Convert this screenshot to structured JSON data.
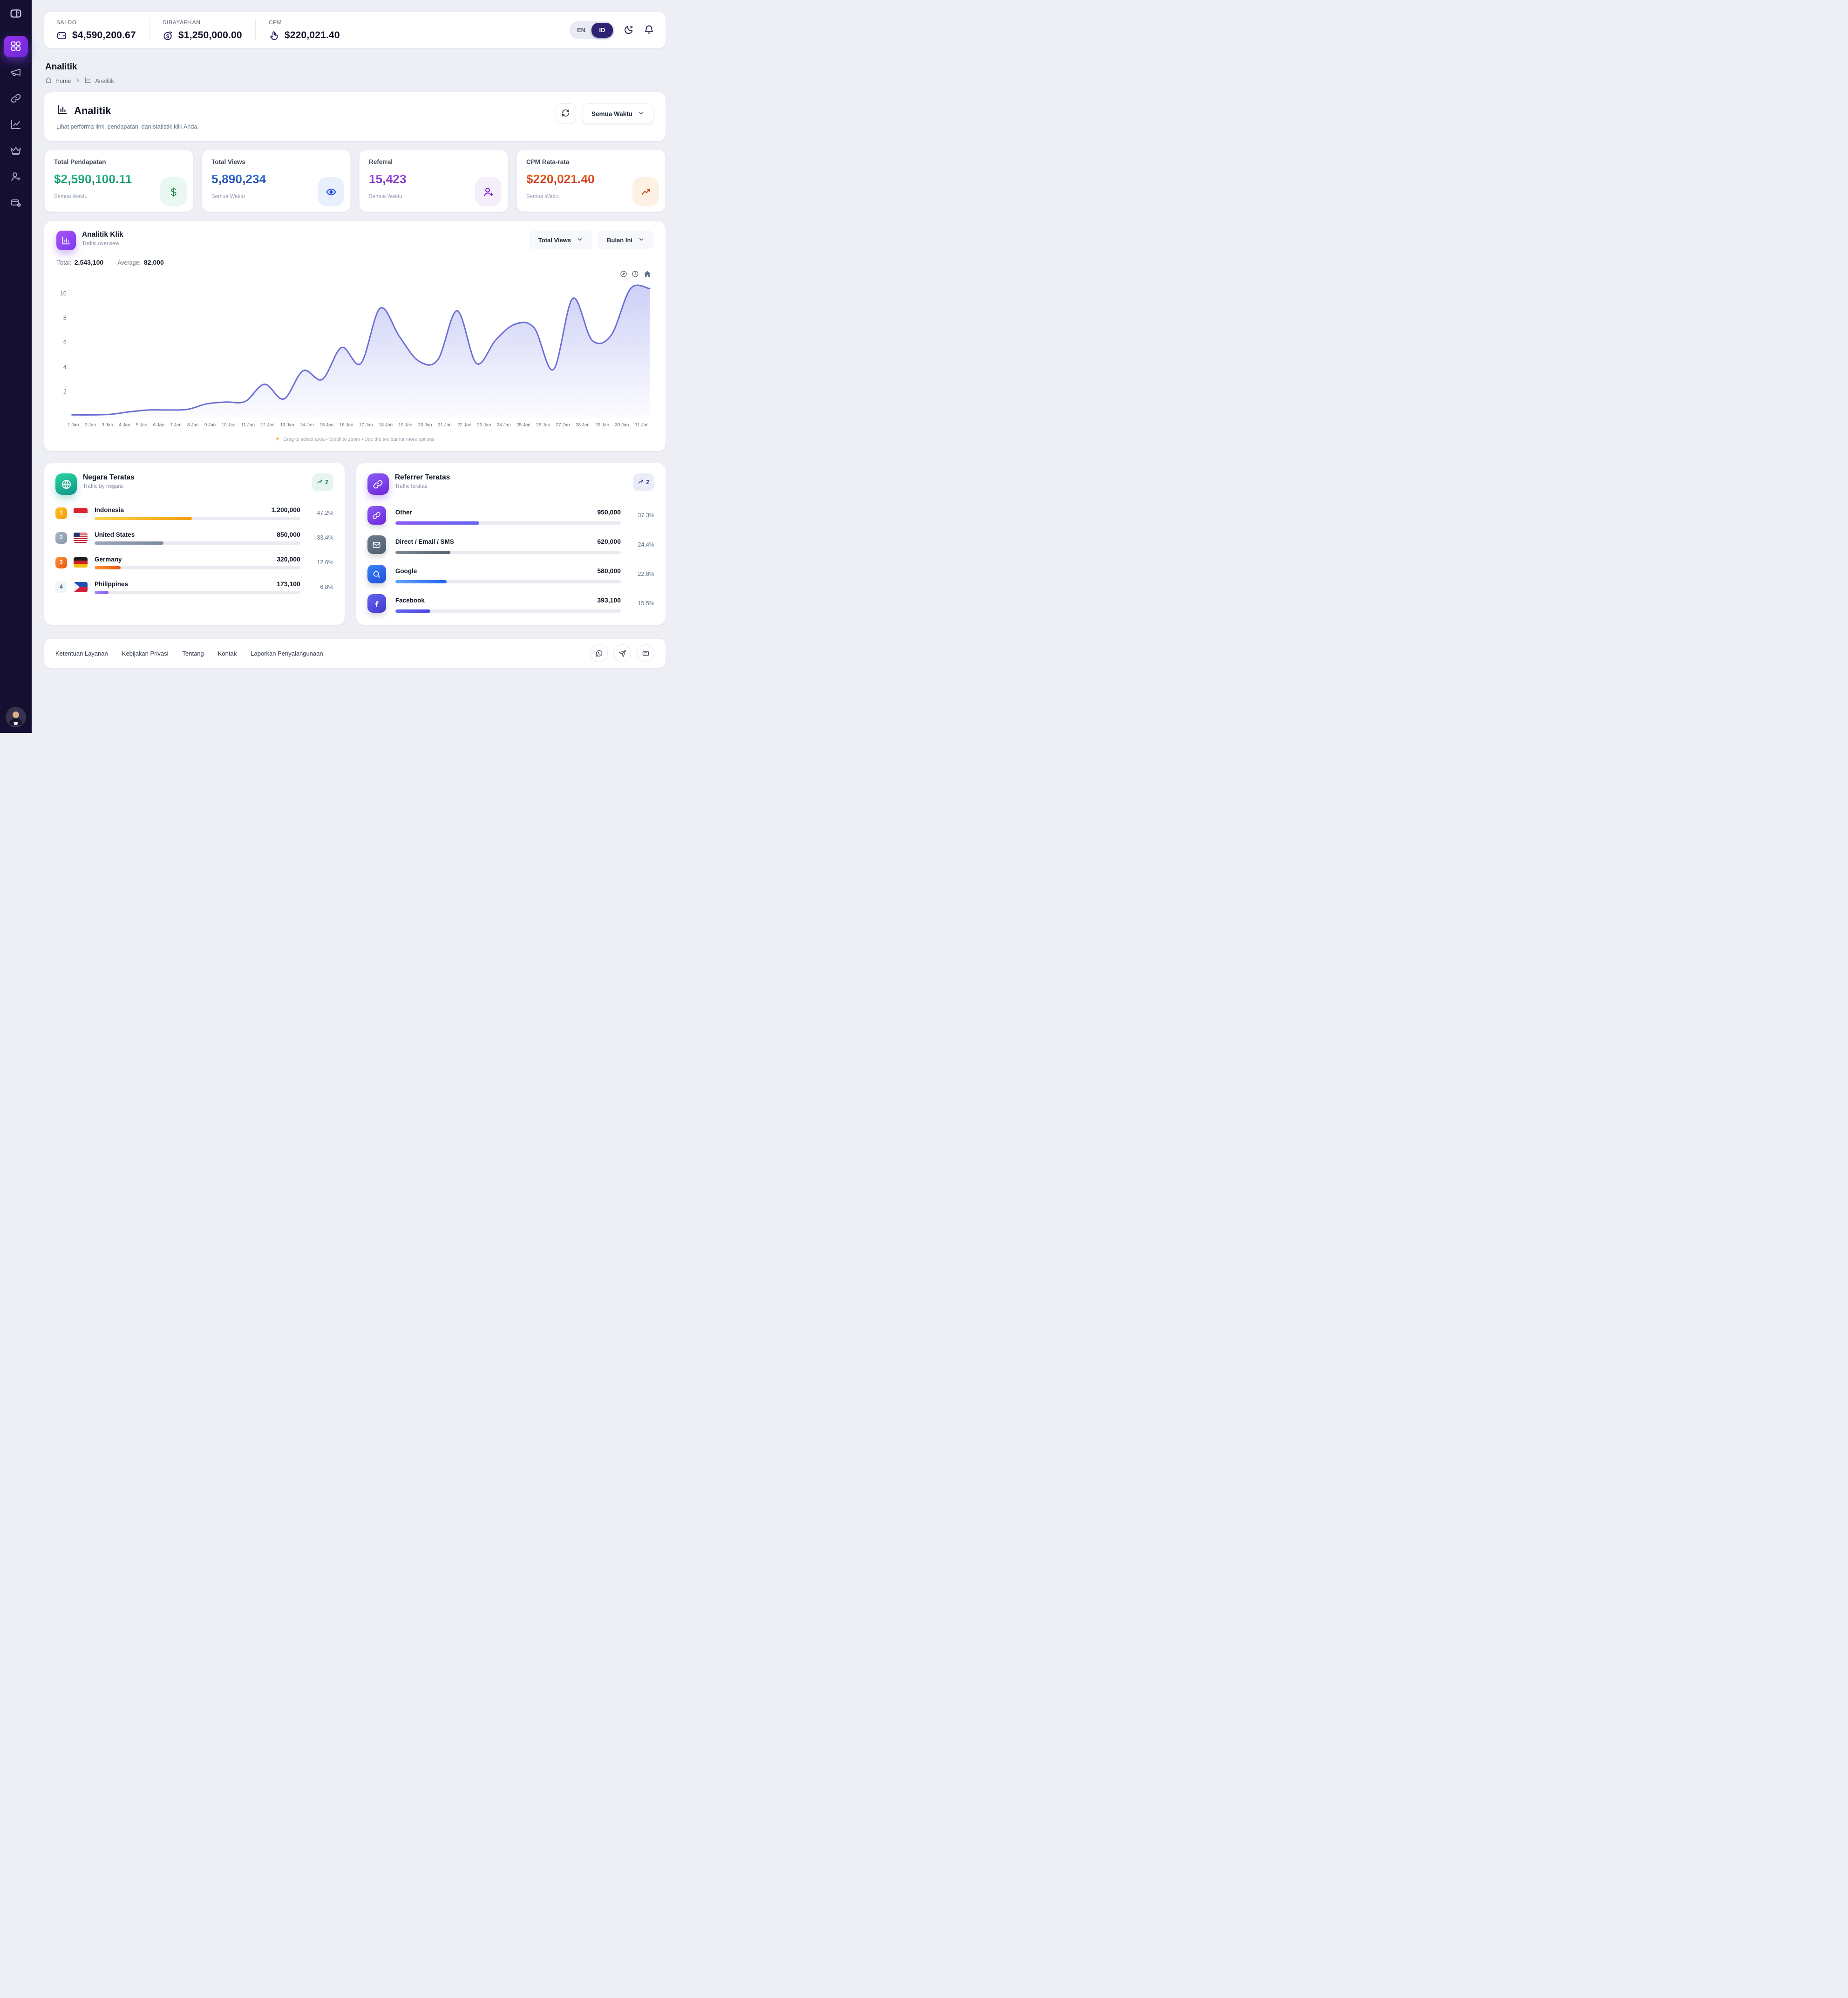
{
  "sidebar": {
    "logo_icon": "wallet",
    "active": "dashboard",
    "icons": [
      "dashboard",
      "megaphone",
      "link",
      "chart-line",
      "crown",
      "user-plus",
      "payment-card"
    ]
  },
  "topbar": {
    "metrics": [
      {
        "label": "SALDO",
        "value": "$4,590,200.67",
        "icon": "wallet"
      },
      {
        "label": "DIBAYARKAN",
        "value": "$1,250,000.00",
        "icon": "coin-dollar"
      },
      {
        "label": "CPM",
        "value": "$220,021.40",
        "icon": "tap"
      }
    ],
    "lang": {
      "en": "EN",
      "id": "ID",
      "active": "ID"
    }
  },
  "breadcrumb": {
    "page_title": "Analitik",
    "home": "Home",
    "current": "Analitik"
  },
  "panel": {
    "title": "Analitik",
    "subtitle": "Lihat performa link, pendapatan, dan statistik klik Anda.",
    "period": "Semua Waktu"
  },
  "stats": [
    {
      "label": "Total Pendapatan",
      "value": "$2,590,100.11",
      "period": "Semua Waktu",
      "icon": "dollar",
      "color": "#15803d",
      "grad_a": "#34d399",
      "grad_b": "#047857",
      "blob_bg": "#e9f8f0"
    },
    {
      "label": "Total Views",
      "value": "5,890,234",
      "period": "Semua Waktu",
      "icon": "eye",
      "color": "#1d4ed8",
      "grad_a": "#3b82f6",
      "grad_b": "#1e3a8a",
      "blob_bg": "#e8f0fd"
    },
    {
      "label": "Referral",
      "value": "15,423",
      "period": "Semua Waktu",
      "icon": "user-plus",
      "color": "#7e22ce",
      "grad_a": "#a855f7",
      "grad_b": "#6b21a8",
      "blob_bg": "#f5eefb"
    },
    {
      "label": "CPM Rata-rata",
      "value": "$220,021.40",
      "period": "Semua Waktu",
      "icon": "trend-up",
      "color": "#c2410c",
      "grad_a": "#f97316",
      "grad_b": "#b91c1c",
      "blob_bg": "#fdf1e3"
    }
  ],
  "chart_card": {
    "metric_button": "Total Views",
    "period_button": "Bulan Ini",
    "footnote": "Drag to select area  •  Scroll to zoom  •  Use the toolbar for more options"
  },
  "chart_data": {
    "type": "area",
    "title": "Analitik Klik",
    "subtitle": "Traffic overview",
    "total_label": "Total:",
    "total_value": "2,543,100",
    "average_label": "Average:",
    "average_value": "82,000",
    "x": [
      "1 Jan",
      "2 Jan",
      "3 Jan",
      "4 Jan",
      "5 Jan",
      "6 Jan",
      "7 Jan",
      "8 Jan",
      "9 Jan",
      "10 Jan",
      "11 Jan",
      "12 Jan",
      "13 Jan",
      "14 Jan",
      "15 Jan",
      "16 Jan",
      "17 Jan",
      "18 Jan",
      "19 Jan",
      "20 Jan",
      "21 Jan",
      "22 Jan",
      "23 Jan",
      "24 Jan",
      "25 Jan",
      "26 Jan",
      "27 Jan",
      "28 Jan",
      "29 Jan",
      "30 Jan",
      "31 Jan"
    ],
    "values": [
      0.1,
      0.1,
      0.15,
      0.35,
      0.5,
      0.5,
      0.55,
      1.0,
      1.15,
      1.2,
      2.6,
      1.4,
      3.7,
      3.0,
      5.6,
      4.3,
      8.8,
      6.5,
      4.5,
      4.6,
      8.6,
      4.3,
      6.2,
      7.5,
      7.2,
      3.8,
      9.6,
      6.2,
      6.6,
      10.4,
      10.4
    ],
    "ylim": [
      0,
      10.8
    ],
    "yticks": [
      2,
      4,
      6,
      8,
      10
    ],
    "grid": false,
    "legend": false,
    "line_color": "#6a6ed3",
    "fill_color": "#7c82e9"
  },
  "countries": {
    "title": "Negara Teratas",
    "subtitle": "Traffic by negara",
    "badge_letter": "Z",
    "rows": [
      {
        "rank": "1",
        "flag": "id",
        "name": "Indonesia",
        "value": "1,200,000",
        "pct": "47.2%",
        "pct_num": 47.2,
        "bar_from": "#fcd34d",
        "bar_to": "#f59e0b",
        "rank_bg": "linear-gradient(135deg,#fbbf24,#f59e0b)",
        "rank_color": "#ffffff"
      },
      {
        "rank": "2",
        "flag": "us",
        "name": "United States",
        "value": "850,000",
        "pct": "33.4%",
        "pct_num": 33.4,
        "bar_from": "#9aa7b8",
        "bar_to": "#7c8a9d",
        "rank_bg": "linear-gradient(135deg,#aab6c6,#8897ab)",
        "rank_color": "#ffffff"
      },
      {
        "rank": "3",
        "flag": "de",
        "name": "Germany",
        "value": "320,000",
        "pct": "12.6%",
        "pct_num": 12.6,
        "bar_from": "#fb923c",
        "bar_to": "#ea580c",
        "rank_bg": "linear-gradient(135deg,#fb923c,#ea580c)",
        "rank_color": "#ffffff"
      },
      {
        "rank": "4",
        "flag": "ph",
        "name": "Philippines",
        "value": "173,100",
        "pct": "6.8%",
        "pct_num": 6.8,
        "bar_from": "#a78bfa",
        "bar_to": "#8b5cf6",
        "rank_bg": "#f1f5f9",
        "rank_color": "#475569"
      }
    ]
  },
  "referrers": {
    "title": "Referrer Teratas",
    "subtitle": "Traffic teratas",
    "badge_letter": "Z",
    "rows": [
      {
        "icon": "link",
        "name": "Other",
        "value": "950,000",
        "pct": "37.3%",
        "pct_num": 37.3,
        "chip_bg": "linear-gradient(150deg,#8b5cf6,#6d28d9)",
        "bar_from": "#8b5cf6",
        "bar_to": "#6366f1"
      },
      {
        "icon": "mail",
        "name": "Direct / Email / SMS",
        "value": "620,000",
        "pct": "24.4%",
        "pct_num": 24.4,
        "chip_bg": "linear-gradient(150deg,#6b7a8d,#51606f)",
        "bar_from": "#7b8794",
        "bar_to": "#5b6673"
      },
      {
        "icon": "search",
        "name": "Google",
        "value": "580,000",
        "pct": "22.8%",
        "pct_num": 22.8,
        "chip_bg": "linear-gradient(150deg,#3b82f6,#1d4ed8)",
        "bar_from": "#60a5fa",
        "bar_to": "#2563eb"
      },
      {
        "icon": "facebook",
        "name": "Facebook",
        "value": "393,100",
        "pct": "15.5%",
        "pct_num": 15.5,
        "chip_bg": "linear-gradient(150deg,#6366f1,#4338ca)",
        "bar_from": "#6366f1",
        "bar_to": "#4f46e5"
      }
    ]
  },
  "footer": {
    "links": [
      "Ketentuan Layanan",
      "Kebijakan Privasi",
      "Tentang",
      "Kontak",
      "Laporkan Penyalahgunaan"
    ],
    "icons": [
      "whatsapp",
      "telegram",
      "card"
    ]
  }
}
